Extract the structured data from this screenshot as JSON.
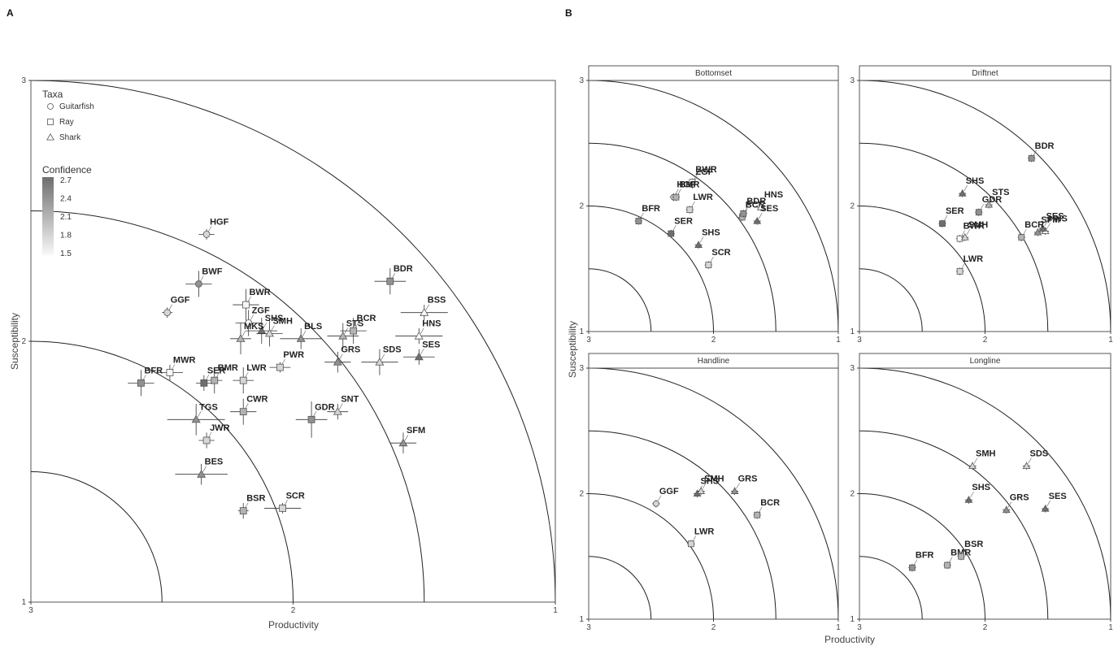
{
  "figure": {
    "panel_a_letter": "A",
    "panel_b_letter": "B",
    "xlabel": "Productivity",
    "ylabel": "Susceptibility",
    "legend": {
      "taxa_title": "Taxa",
      "taxa": [
        "Guitarfish",
        "Ray",
        "Shark"
      ],
      "confidence_title": "Confidence",
      "confidence_ticks": [
        "2.7",
        "2.4",
        "2.1",
        "1.8",
        "1.5"
      ]
    }
  },
  "chart_data": [
    {
      "type": "scatter",
      "panel": "A",
      "xlabel": "Productivity",
      "ylabel": "Susceptibility",
      "xlim": [
        3,
        1
      ],
      "ylim": [
        1,
        3
      ],
      "x_ticks": [
        "3",
        "2",
        "1"
      ],
      "y_ticks": [
        "1",
        "2",
        "3"
      ],
      "risk_arcs_radius": [
        0.5,
        1.0,
        1.5,
        2.0
      ],
      "points": [
        {
          "label": "HGF",
          "taxa": "Guitarfish",
          "x": 2.33,
          "y": 2.41,
          "conf": 1.8,
          "ex": 0.03,
          "ey": 0.02
        },
        {
          "label": "BWF",
          "taxa": "Guitarfish",
          "x": 2.36,
          "y": 2.22,
          "conf": 2.4,
          "ex": 0.05,
          "ey": 0.05
        },
        {
          "label": "GGF",
          "taxa": "Guitarfish",
          "x": 2.48,
          "y": 2.11,
          "conf": 1.8,
          "ex": 0.02,
          "ey": 0.02
        },
        {
          "label": "BWR",
          "taxa": "Ray",
          "x": 2.18,
          "y": 2.14,
          "conf": 1.5,
          "ex": 0.05,
          "ey": 0.06
        },
        {
          "label": "ZGF",
          "taxa": "Guitarfish",
          "x": 2.17,
          "y": 2.07,
          "conf": 1.5,
          "ex": 0.05,
          "ey": 0.05
        },
        {
          "label": "SHS",
          "taxa": "Shark",
          "x": 2.12,
          "y": 2.04,
          "conf": 2.7,
          "ex": 0.06,
          "ey": 0.05
        },
        {
          "label": "MKS",
          "taxa": "Shark",
          "x": 2.2,
          "y": 2.01,
          "conf": 2.1,
          "ex": 0.04,
          "ey": 0.06
        },
        {
          "label": "SMH",
          "taxa": "Shark",
          "x": 2.09,
          "y": 2.03,
          "conf": 1.8,
          "ex": 0.05,
          "ey": 0.05
        },
        {
          "label": "BLS",
          "taxa": "Shark",
          "x": 1.97,
          "y": 2.01,
          "conf": 2.4,
          "ex": 0.08,
          "ey": 0.04
        },
        {
          "label": "STS",
          "taxa": "Shark",
          "x": 1.81,
          "y": 2.02,
          "conf": 2.1,
          "ex": 0.06,
          "ey": 0.05
        },
        {
          "label": "BCR",
          "taxa": "Ray",
          "x": 1.77,
          "y": 2.04,
          "conf": 2.1,
          "ex": 0.05,
          "ey": 0.05
        },
        {
          "label": "BDR",
          "taxa": "Ray",
          "x": 1.63,
          "y": 2.23,
          "conf": 2.4,
          "ex": 0.06,
          "ey": 0.05
        },
        {
          "label": "BSS",
          "taxa": "Shark",
          "x": 1.5,
          "y": 2.11,
          "conf": 1.5,
          "ex": 0.09,
          "ey": 0.03
        },
        {
          "label": "HNS",
          "taxa": "Shark",
          "x": 1.52,
          "y": 2.02,
          "conf": 1.5,
          "ex": 0.09,
          "ey": 0.03
        },
        {
          "label": "SES",
          "taxa": "Shark",
          "x": 1.52,
          "y": 1.94,
          "conf": 2.7,
          "ex": 0.06,
          "ey": 0.03
        },
        {
          "label": "GRS",
          "taxa": "Shark",
          "x": 1.83,
          "y": 1.92,
          "conf": 2.4,
          "ex": 0.05,
          "ey": 0.04
        },
        {
          "label": "SDS",
          "taxa": "Shark",
          "x": 1.67,
          "y": 1.92,
          "conf": 1.8,
          "ex": 0.07,
          "ey": 0.05
        },
        {
          "label": "PWR",
          "taxa": "Ray",
          "x": 2.05,
          "y": 1.9,
          "conf": 1.8,
          "ex": 0.04,
          "ey": 0.02
        },
        {
          "label": "LWR",
          "taxa": "Ray",
          "x": 2.19,
          "y": 1.85,
          "conf": 1.8,
          "ex": 0.04,
          "ey": 0.05
        },
        {
          "label": "BMR",
          "taxa": "Ray",
          "x": 2.3,
          "y": 1.85,
          "conf": 2.1,
          "ex": 0.03,
          "ey": 0.05
        },
        {
          "label": "SER",
          "taxa": "Ray",
          "x": 2.34,
          "y": 1.84,
          "conf": 2.7,
          "ex": 0.03,
          "ey": 0.03
        },
        {
          "label": "MWR",
          "taxa": "Ray",
          "x": 2.47,
          "y": 1.88,
          "conf": 1.5,
          "ex": 0.05,
          "ey": 0.03
        },
        {
          "label": "BFR",
          "taxa": "Ray",
          "x": 2.58,
          "y": 1.84,
          "conf": 2.4,
          "ex": 0.05,
          "ey": 0.05
        },
        {
          "label": "CWR",
          "taxa": "Ray",
          "x": 2.19,
          "y": 1.73,
          "conf": 2.1,
          "ex": 0.05,
          "ey": 0.05
        },
        {
          "label": "TGS",
          "taxa": "Shark",
          "x": 2.37,
          "y": 1.7,
          "conf": 2.4,
          "ex": 0.11,
          "ey": 0.06
        },
        {
          "label": "JWR",
          "taxa": "Ray",
          "x": 2.33,
          "y": 1.62,
          "conf": 1.8,
          "ex": 0.03,
          "ey": 0.03
        },
        {
          "label": "BES",
          "taxa": "Shark",
          "x": 2.35,
          "y": 1.49,
          "conf": 2.4,
          "ex": 0.1,
          "ey": 0.04
        },
        {
          "label": "GDR",
          "taxa": "Ray",
          "x": 1.93,
          "y": 1.7,
          "conf": 2.4,
          "ex": 0.06,
          "ey": 0.07
        },
        {
          "label": "SNT",
          "taxa": "Shark",
          "x": 1.83,
          "y": 1.73,
          "conf": 1.8,
          "ex": 0.04,
          "ey": 0.03
        },
        {
          "label": "SFM",
          "taxa": "Shark",
          "x": 1.58,
          "y": 1.61,
          "conf": 2.4,
          "ex": 0.05,
          "ey": 0.04
        },
        {
          "label": "BSR",
          "taxa": "Ray",
          "x": 2.19,
          "y": 1.35,
          "conf": 2.1,
          "ex": 0.02,
          "ey": 0.03
        },
        {
          "label": "SCR",
          "taxa": "Ray",
          "x": 2.04,
          "y": 1.36,
          "conf": 1.8,
          "ex": 0.07,
          "ey": 0.02
        }
      ]
    },
    {
      "type": "scatter",
      "panel": "B",
      "facet": "Bottomset",
      "xlim": [
        3,
        1
      ],
      "ylim": [
        1,
        3
      ],
      "x_ticks": [
        "3",
        "2",
        "1"
      ],
      "y_ticks": [
        "1",
        "2",
        "3"
      ],
      "points": [
        {
          "label": "BWR",
          "taxa": "Ray",
          "x": 2.17,
          "y": 2.19,
          "conf": 1.5
        },
        {
          "label": "ZGF",
          "taxa": "Guitarfish",
          "x": 2.17,
          "y": 2.17,
          "conf": 1.5
        },
        {
          "label": "HGF",
          "taxa": "Guitarfish",
          "x": 2.32,
          "y": 2.07,
          "conf": 1.8
        },
        {
          "label": "BMR",
          "taxa": "Ray",
          "x": 2.3,
          "y": 2.07,
          "conf": 2.1
        },
        {
          "label": "LWR",
          "taxa": "Ray",
          "x": 2.19,
          "y": 1.97,
          "conf": 1.8
        },
        {
          "label": "BFR",
          "taxa": "Ray",
          "x": 2.6,
          "y": 1.88,
          "conf": 2.4
        },
        {
          "label": "SER",
          "taxa": "Ray",
          "x": 2.34,
          "y": 1.78,
          "conf": 2.7
        },
        {
          "label": "SHS",
          "taxa": "Shark",
          "x": 2.12,
          "y": 1.69,
          "conf": 2.7
        },
        {
          "label": "SCR",
          "taxa": "Ray",
          "x": 2.04,
          "y": 1.53,
          "conf": 1.8
        },
        {
          "label": "BCR",
          "taxa": "Ray",
          "x": 1.77,
          "y": 1.91,
          "conf": 2.1
        },
        {
          "label": "BDR",
          "taxa": "Ray",
          "x": 1.76,
          "y": 1.94,
          "conf": 2.4
        },
        {
          "label": "HNS",
          "taxa": "Shark",
          "x": 1.62,
          "y": 1.99,
          "conf": 1.5
        },
        {
          "label": "SES",
          "taxa": "Shark",
          "x": 1.65,
          "y": 1.88,
          "conf": 2.7
        }
      ]
    },
    {
      "type": "scatter",
      "panel": "B",
      "facet": "Driftnet",
      "xlim": [
        3,
        1
      ],
      "ylim": [
        1,
        3
      ],
      "x_ticks": [
        "3",
        "2",
        "1"
      ],
      "y_ticks": [
        "1",
        "2",
        "3"
      ],
      "points": [
        {
          "label": "BDR",
          "taxa": "Ray",
          "x": 1.63,
          "y": 2.38,
          "conf": 2.4
        },
        {
          "label": "SHS",
          "taxa": "Shark",
          "x": 2.18,
          "y": 2.1,
          "conf": 2.7
        },
        {
          "label": "STS",
          "taxa": "Shark",
          "x": 1.97,
          "y": 2.01,
          "conf": 2.1
        },
        {
          "label": "GDR",
          "taxa": "Ray",
          "x": 2.05,
          "y": 1.95,
          "conf": 2.4
        },
        {
          "label": "SER",
          "taxa": "Ray",
          "x": 2.34,
          "y": 1.86,
          "conf": 2.7
        },
        {
          "label": "BWR",
          "taxa": "Ray",
          "x": 2.2,
          "y": 1.74,
          "conf": 1.5
        },
        {
          "label": "SMH",
          "taxa": "Shark",
          "x": 2.16,
          "y": 1.75,
          "conf": 1.8
        },
        {
          "label": "HNS",
          "taxa": "Shark",
          "x": 1.52,
          "y": 1.8,
          "conf": 1.5
        },
        {
          "label": "SES",
          "taxa": "Shark",
          "x": 1.54,
          "y": 1.82,
          "conf": 2.7
        },
        {
          "label": "SFM",
          "taxa": "Shark",
          "x": 1.58,
          "y": 1.79,
          "conf": 2.4
        },
        {
          "label": "BCR",
          "taxa": "Ray",
          "x": 1.71,
          "y": 1.75,
          "conf": 2.1
        },
        {
          "label": "LWR",
          "taxa": "Ray",
          "x": 2.2,
          "y": 1.48,
          "conf": 1.8
        }
      ]
    },
    {
      "type": "scatter",
      "panel": "B",
      "facet": "Handline",
      "xlim": [
        3,
        1
      ],
      "ylim": [
        1,
        3
      ],
      "x_ticks": [
        "3",
        "2",
        "1"
      ],
      "y_ticks": [
        "1",
        "2",
        "3"
      ],
      "points": [
        {
          "label": "GGF",
          "taxa": "Guitarfish",
          "x": 2.46,
          "y": 1.92,
          "conf": 1.8
        },
        {
          "label": "SHS",
          "taxa": "Shark",
          "x": 2.13,
          "y": 2.0,
          "conf": 2.7
        },
        {
          "label": "SMH",
          "taxa": "Shark",
          "x": 2.1,
          "y": 2.02,
          "conf": 1.8
        },
        {
          "label": "GRS",
          "taxa": "Shark",
          "x": 1.83,
          "y": 2.02,
          "conf": 2.4
        },
        {
          "label": "BCR",
          "taxa": "Ray",
          "x": 1.65,
          "y": 1.83,
          "conf": 2.1
        },
        {
          "label": "LWR",
          "taxa": "Ray",
          "x": 2.18,
          "y": 1.6,
          "conf": 1.8
        }
      ]
    },
    {
      "type": "scatter",
      "panel": "B",
      "facet": "Longline",
      "xlim": [
        3,
        1
      ],
      "ylim": [
        1,
        3
      ],
      "x_ticks": [
        "3",
        "2",
        "1"
      ],
      "y_ticks": [
        "1",
        "2",
        "3"
      ],
      "points": [
        {
          "label": "SMH",
          "taxa": "Shark",
          "x": 2.1,
          "y": 2.22,
          "conf": 1.8
        },
        {
          "label": "SDS",
          "taxa": "Shark",
          "x": 1.67,
          "y": 2.22,
          "conf": 1.8
        },
        {
          "label": "SHS",
          "taxa": "Shark",
          "x": 2.13,
          "y": 1.95,
          "conf": 2.7
        },
        {
          "label": "GRS",
          "taxa": "Shark",
          "x": 1.83,
          "y": 1.87,
          "conf": 2.4
        },
        {
          "label": "SES",
          "taxa": "Shark",
          "x": 1.52,
          "y": 1.88,
          "conf": 2.7
        },
        {
          "label": "BFR",
          "taxa": "Ray",
          "x": 2.58,
          "y": 1.41,
          "conf": 2.4
        },
        {
          "label": "BMR",
          "taxa": "Ray",
          "x": 2.3,
          "y": 1.43,
          "conf": 2.1
        },
        {
          "label": "BSR",
          "taxa": "Ray",
          "x": 2.19,
          "y": 1.5,
          "conf": 2.1
        }
      ]
    }
  ]
}
